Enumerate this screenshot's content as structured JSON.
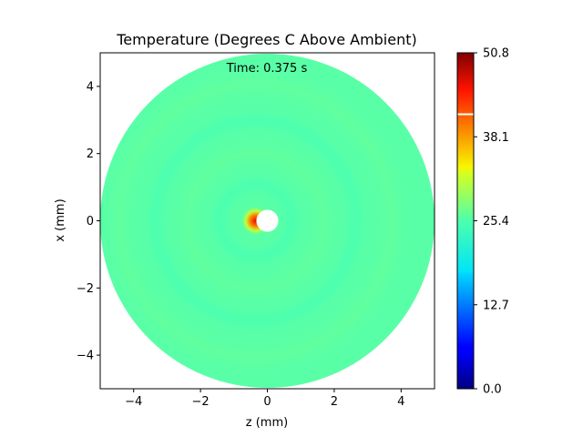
{
  "chart_data": {
    "type": "heatmap",
    "title": "Temperature (Degrees C Above Ambient)",
    "annotation": "Time: 0.375 s",
    "xlabel": "z (mm)",
    "ylabel": "x (mm)",
    "xlim": [
      -5,
      5
    ],
    "ylim": [
      -5,
      5
    ],
    "xticks": [
      -4,
      -2,
      0,
      2,
      4
    ],
    "yticks": [
      -4,
      -2,
      0,
      2,
      4
    ],
    "xtick_labels": [
      "−4",
      "−2",
      "0",
      "2",
      "4"
    ],
    "ytick_labels": [
      "−4",
      "−2",
      "0",
      "2",
      "4"
    ],
    "domain": {
      "shape": "circle",
      "center": [
        0,
        0
      ],
      "radius": 5
    },
    "background_temperature": 23.5,
    "hotspot": {
      "z": -0.35,
      "x": 0,
      "peak": 50.8
    },
    "void": {
      "z": 0,
      "x": 0,
      "radius": 0.22
    },
    "colormap": "jet",
    "colorbar": {
      "min": 0.0,
      "max": 50.8,
      "ticks": [
        0.0,
        12.7,
        25.4,
        38.1,
        50.8
      ],
      "tick_labels": [
        "0.0",
        "12.7",
        "25.4",
        "38.1",
        "50.8"
      ],
      "marker": 41.5,
      "marker_color": "#ffffff"
    }
  }
}
